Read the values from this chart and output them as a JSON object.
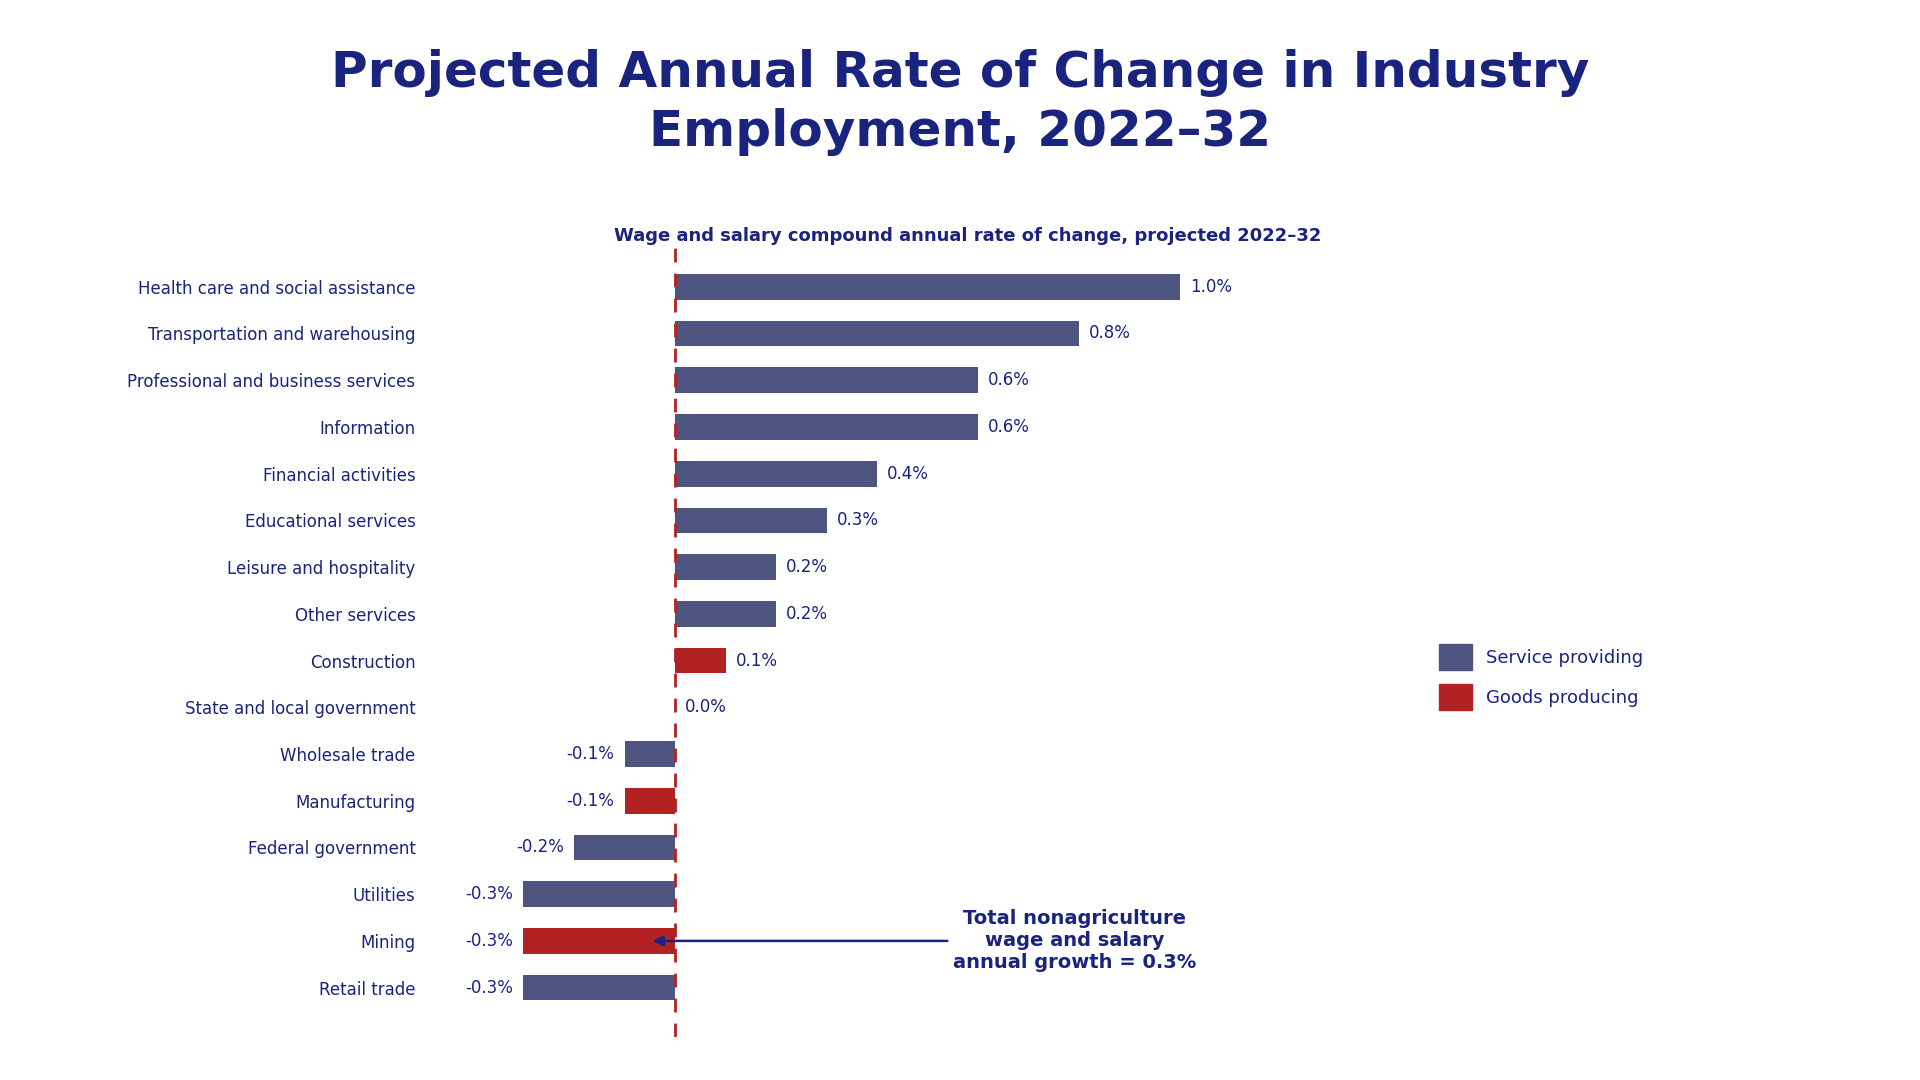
{
  "title": "Projected Annual Rate of Change in Industry\nEmployment, 2022–32",
  "subtitle": "Wage and salary compound annual rate of change, projected 2022–32",
  "categories": [
    "Health care and social assistance",
    "Transportation and warehousing",
    "Professional and business services",
    "Information",
    "Financial activities",
    "Educational services",
    "Leisure and hospitality",
    "Other services",
    "Construction",
    "State and local government",
    "Wholesale trade",
    "Manufacturing",
    "Federal government",
    "Utilities",
    "Mining",
    "Retail trade"
  ],
  "values": [
    1.0,
    0.8,
    0.6,
    0.6,
    0.4,
    0.3,
    0.2,
    0.2,
    0.1,
    0.0,
    -0.1,
    -0.1,
    -0.2,
    -0.3,
    -0.3,
    -0.3
  ],
  "bar_colors": [
    "#4d5580",
    "#4d5580",
    "#4d5580",
    "#4d5580",
    "#4d5580",
    "#4d5580",
    "#4d5580",
    "#4d5580",
    "#b22222",
    "#4d5580",
    "#4d5580",
    "#b22222",
    "#4d5580",
    "#4d5580",
    "#b22222",
    "#4d5580"
  ],
  "labels": [
    "1.0%",
    "0.8%",
    "0.6%",
    "0.6%",
    "0.4%",
    "0.3%",
    "0.2%",
    "0.2%",
    "0.1%",
    "0.0%",
    "-0.1%",
    "-0.1%",
    "-0.2%",
    "-0.3%",
    "-0.3%",
    "-0.3%"
  ],
  "title_color": "#1a237e",
  "subtitle_color": "#1a237e",
  "bar_service_color": "#4d5580",
  "bar_goods_color": "#b22222",
  "dashed_line_color": "#b22222",
  "annotation_text": "Total nonagriculture\nwage and salary\nannual growth = 0.3%",
  "annotation_color": "#1a237e",
  "legend_service": "Service providing",
  "legend_goods": "Goods producing",
  "background_color": "#ffffff",
  "xlim": [
    -0.5,
    1.4
  ],
  "title_fontsize": 36,
  "subtitle_fontsize": 13,
  "label_fontsize": 12,
  "category_fontsize": 12,
  "annotation_fontsize": 14
}
